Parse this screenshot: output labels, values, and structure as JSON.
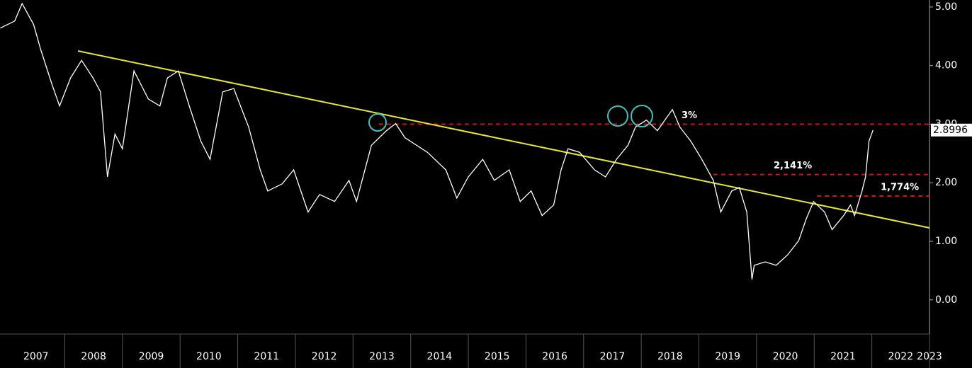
{
  "chart_data": {
    "type": "line",
    "xlim": [
      2006.876,
      2023.0
    ],
    "ylim": [
      -0.8,
      5.12
    ],
    "xticks": [
      2007,
      2008,
      2009,
      2010,
      2011,
      2012,
      2013,
      2014,
      2015,
      2016,
      2017,
      2018,
      2019,
      2020,
      2021,
      2022,
      2023
    ],
    "yticks": [
      {
        "value": 0,
        "label": "0.00"
      },
      {
        "value": 1,
        "label": "1.00"
      },
      {
        "value": 2,
        "label": "2.00"
      },
      {
        "value": 3,
        "label": "3.00"
      },
      {
        "value": 4,
        "label": "4.00"
      },
      {
        "value": 5,
        "label": "5.00"
      }
    ],
    "series": [
      {
        "color": "#ffffff",
        "x": [
          2006.88,
          2007.13,
          2007.26,
          2007.46,
          2007.58,
          2007.78,
          2007.91,
          2008.1,
          2008.29,
          2008.49,
          2008.62,
          2008.74,
          2008.87,
          2009.0,
          2009.2,
          2009.45,
          2009.65,
          2009.78,
          2009.97,
          2010.16,
          2010.36,
          2010.52,
          2010.74,
          2010.93,
          2011.19,
          2011.39,
          2011.52,
          2011.77,
          2011.97,
          2012.22,
          2012.42,
          2012.68,
          2012.93,
          2013.06,
          2013.32,
          2013.58,
          2013.74,
          2013.9,
          2014.29,
          2014.61,
          2014.8,
          2015.0,
          2015.25,
          2015.45,
          2015.71,
          2015.9,
          2016.09,
          2016.28,
          2016.48,
          2016.61,
          2016.73,
          2016.93,
          2017.19,
          2017.38,
          2017.57,
          2017.77,
          2017.9,
          2018.09,
          2018.28,
          2018.54,
          2018.67,
          2018.86,
          2019.05,
          2019.25,
          2019.38,
          2019.57,
          2019.7,
          2019.83,
          2019.92,
          2019.96,
          2020.15,
          2020.34,
          2020.54,
          2020.73,
          2020.86,
          2020.99,
          2021.18,
          2021.31,
          2021.51,
          2021.63,
          2021.7,
          2021.83,
          2021.89,
          2021.95,
          2022.02
        ],
        "values": [
          4.64,
          4.76,
          5.06,
          4.7,
          4.28,
          3.67,
          3.31,
          3.79,
          4.09,
          3.79,
          3.55,
          2.1,
          2.83,
          2.58,
          3.91,
          3.43,
          3.31,
          3.79,
          3.91,
          3.31,
          2.71,
          2.4,
          3.55,
          3.61,
          2.95,
          2.22,
          1.86,
          1.98,
          2.22,
          1.5,
          1.8,
          1.68,
          2.04,
          1.68,
          2.64,
          2.89,
          3.01,
          2.77,
          2.52,
          2.22,
          1.74,
          2.1,
          2.4,
          2.04,
          2.22,
          1.68,
          1.86,
          1.44,
          1.62,
          2.22,
          2.58,
          2.52,
          2.22,
          2.1,
          2.4,
          2.64,
          2.95,
          3.07,
          2.89,
          3.25,
          2.95,
          2.71,
          2.4,
          2.04,
          1.5,
          1.86,
          1.92,
          1.5,
          0.35,
          0.59,
          0.65,
          0.59,
          0.77,
          1.01,
          1.38,
          1.68,
          1.5,
          1.2,
          1.44,
          1.62,
          1.44,
          1.86,
          2.1,
          2.71,
          2.8996
        ]
      }
    ],
    "trendline": {
      "color": "#e8e82c",
      "x": [
        2008.23,
        2023.0
      ],
      "values": [
        4.25,
        1.23
      ]
    },
    "levels": [
      {
        "value": 3,
        "label": "3%",
        "from": 2013.45
      },
      {
        "value": 2.141,
        "label": "2,141%",
        "from": 2019.25
      },
      {
        "value": 1.774,
        "label": "1,774%",
        "from": 2021.05
      }
    ],
    "level_color": "#d41414"
  }
}
